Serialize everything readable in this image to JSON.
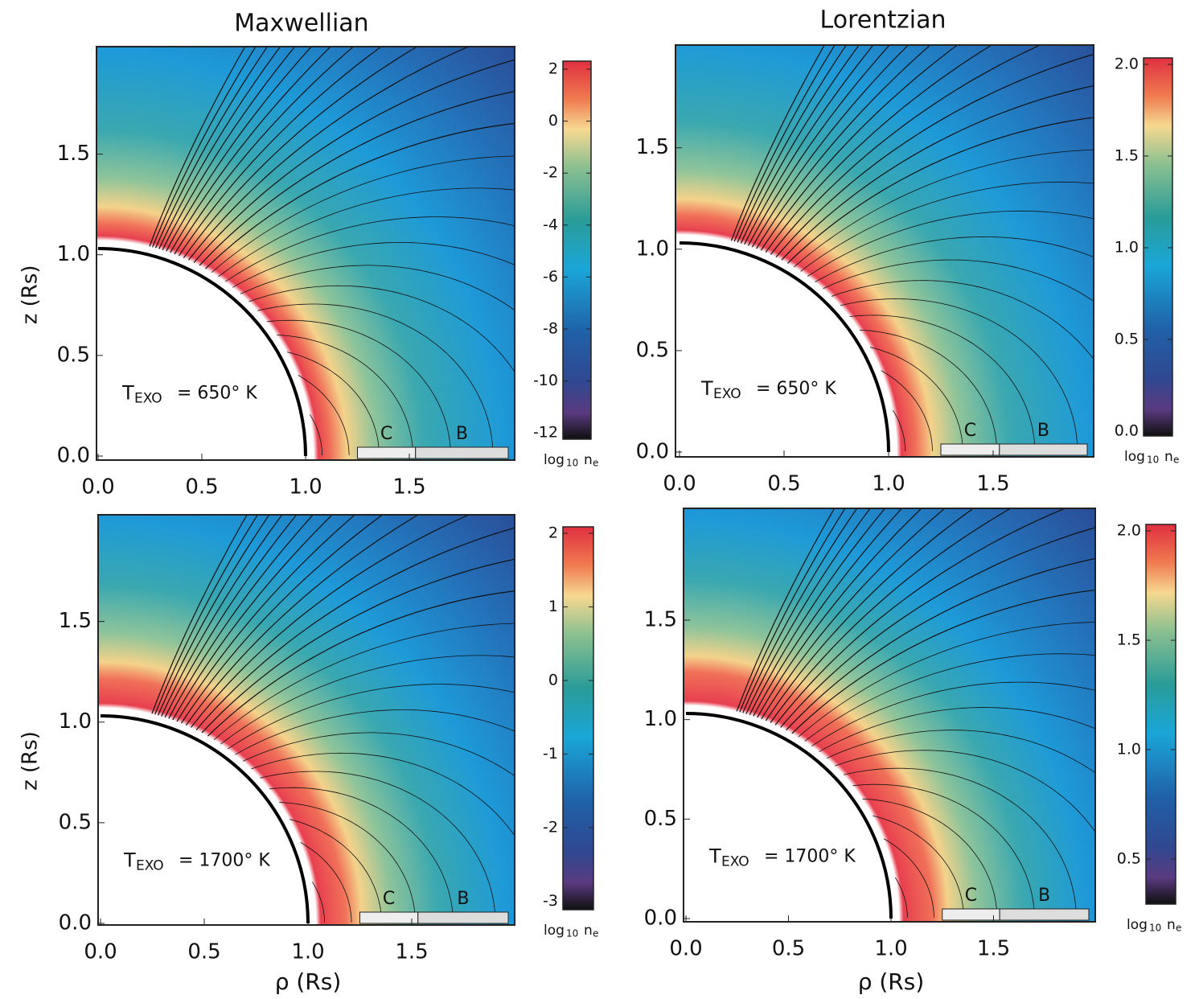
{
  "columns": [
    "Maxwellian",
    "Lorentzian"
  ],
  "y_label": "z (Rs)",
  "x_label": "ρ (Rs)",
  "panels": [
    {
      "x_ticks": [
        "0.0",
        "0.5",
        "1.0",
        "1.5"
      ],
      "y_ticks": [
        "0.0",
        "0.5",
        "1.0",
        "1.5"
      ],
      "temperature": {
        "symbol": "T",
        "subscript": "EXO",
        "value": "= 650° K"
      },
      "regions": [
        "C",
        "B"
      ],
      "colorbar": {
        "ticks": [
          "2",
          "0",
          "-2",
          "-4",
          "-6",
          "-8",
          "-10",
          "-12"
        ],
        "label": {
          "base": "log",
          "base_sub": "10",
          "var": "n",
          "var_sub": "e"
        }
      }
    },
    {
      "x_ticks": [
        "0.0",
        "0.5",
        "1.0",
        "1.5"
      ],
      "y_ticks": [
        "0.0",
        "0.5",
        "1.0",
        "1.5"
      ],
      "temperature": {
        "symbol": "T",
        "subscript": "EXO",
        "value": "= 650° K"
      },
      "regions": [
        "C",
        "B"
      ],
      "colorbar": {
        "ticks": [
          "2.0",
          "1.5",
          "1.0",
          "0.5",
          "0.0"
        ],
        "label": {
          "base": "log",
          "base_sub": "10",
          "var": "n",
          "var_sub": "e"
        }
      }
    },
    {
      "x_ticks": [
        "0.0",
        "0.5",
        "1.0",
        "1.5"
      ],
      "y_ticks": [
        "0.0",
        "0.5",
        "1.0",
        "1.5"
      ],
      "temperature": {
        "symbol": "T",
        "subscript": "EXO",
        "value": "= 1700° K"
      },
      "regions": [
        "C",
        "B"
      ],
      "colorbar": {
        "ticks": [
          "2",
          "1",
          "0",
          "-1",
          "-2",
          "-3"
        ],
        "label": {
          "base": "log",
          "base_sub": "10",
          "var": "n",
          "var_sub": "e"
        }
      }
    },
    {
      "x_ticks": [
        "0.0",
        "0.5",
        "1.0",
        "1.5"
      ],
      "y_ticks": [
        "0.0",
        "0.5",
        "1.0",
        "1.5"
      ],
      "temperature": {
        "symbol": "T",
        "subscript": "EXO",
        "value": "= 1700° K"
      },
      "regions": [
        "C",
        "B"
      ],
      "colorbar": {
        "ticks": [
          "2.0",
          "1.5",
          "1.0",
          "0.5"
        ],
        "label": {
          "base": "log",
          "base_sub": "10",
          "var": "n",
          "var_sub": "e"
        }
      }
    }
  ]
}
